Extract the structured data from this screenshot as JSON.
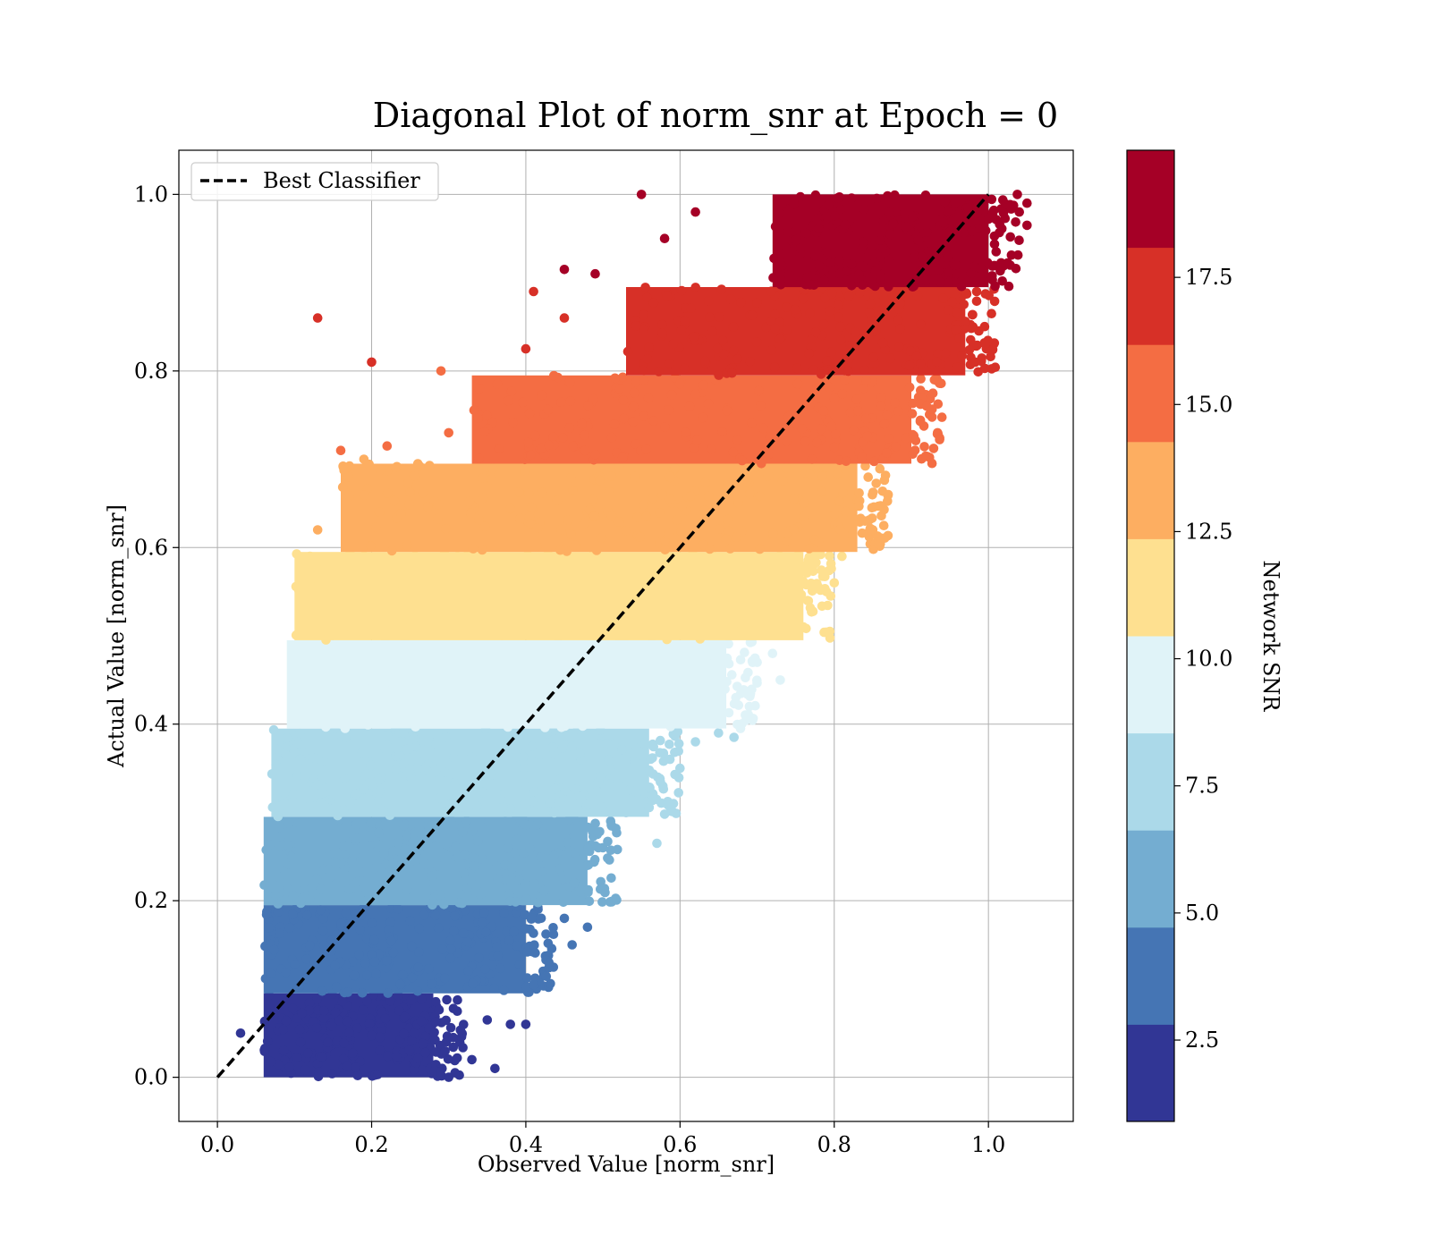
{
  "chart_data": {
    "type": "scatter",
    "title": "Diagonal Plot of norm_snr at Epoch = 0",
    "xlabel": "Observed Value [norm_snr]",
    "ylabel": "Actual Value [norm_snr]",
    "xlim": [
      -0.05,
      1.11
    ],
    "ylim": [
      -0.05,
      1.05
    ],
    "xticks": [
      "0.0",
      "0.2",
      "0.4",
      "0.6",
      "0.8",
      "1.0"
    ],
    "yticks": [
      "0.0",
      "0.2",
      "0.4",
      "0.6",
      "0.8",
      "1.0"
    ],
    "grid": true,
    "legend": {
      "placement": "upper-left",
      "entries": [
        {
          "label": "Best Classifier",
          "style": "dashed",
          "color": "#000000"
        }
      ]
    },
    "reference_line": {
      "name": "Best Classifier",
      "points": [
        [
          0,
          0
        ],
        [
          1,
          1
        ]
      ],
      "style": "dashed"
    },
    "colorbar": {
      "label": "Network SNR",
      "range": [
        0.9,
        20.0
      ],
      "ticks": [
        "2.5",
        "5.0",
        "7.5",
        "10.0",
        "12.5",
        "15.0",
        "17.5"
      ],
      "colors": [
        "#313695",
        "#4575b4",
        "#74add1",
        "#abd9e9",
        "#e0f3f8",
        "#fee090",
        "#fdae61",
        "#f46d43",
        "#d73027",
        "#a50026"
      ]
    },
    "bands": [
      {
        "y_range": [
          0.0,
          0.095
        ],
        "color": "#313695",
        "core_x": [
          0.06,
          0.28
        ],
        "outliers": [
          [
            0.03,
            0.05
          ],
          [
            0.3,
            0.0
          ],
          [
            0.33,
            0.02
          ],
          [
            0.36,
            0.01
          ],
          [
            0.38,
            0.06
          ],
          [
            0.4,
            0.06
          ],
          [
            0.35,
            0.065
          ]
        ]
      },
      {
        "y_range": [
          0.095,
          0.195
        ],
        "color": "#4575b4",
        "core_x": [
          0.06,
          0.4
        ],
        "outliers": [
          [
            0.41,
            0.105
          ],
          [
            0.46,
            0.15
          ],
          [
            0.48,
            0.17
          ],
          [
            0.43,
            0.13
          ],
          [
            0.45,
            0.18
          ]
        ]
      },
      {
        "y_range": [
          0.195,
          0.295
        ],
        "color": "#74add1",
        "core_x": [
          0.06,
          0.48
        ],
        "outliers": [
          [
            0.48,
            0.24
          ],
          [
            0.5,
            0.26
          ],
          [
            0.47,
            0.21
          ],
          [
            0.51,
            0.29
          ],
          [
            0.53,
            0.3
          ]
        ]
      },
      {
        "y_range": [
          0.295,
          0.395
        ],
        "color": "#abd9e9",
        "core_x": [
          0.07,
          0.56
        ],
        "outliers": [
          [
            0.57,
            0.265
          ],
          [
            0.6,
            0.35
          ],
          [
            0.65,
            0.39
          ],
          [
            0.67,
            0.385
          ],
          [
            0.62,
            0.38
          ]
        ]
      },
      {
        "y_range": [
          0.395,
          0.495
        ],
        "color": "#e0f3f8",
        "core_x": [
          0.09,
          0.66
        ],
        "outliers": [
          [
            0.69,
            0.42
          ],
          [
            0.7,
            0.47
          ],
          [
            0.72,
            0.48
          ],
          [
            0.73,
            0.45
          ]
        ]
      },
      {
        "y_range": [
          0.495,
          0.595
        ],
        "color": "#fee090",
        "core_x": [
          0.1,
          0.76
        ],
        "outliers": [
          [
            0.12,
            0.59
          ],
          [
            0.76,
            0.51
          ],
          [
            0.79,
            0.55
          ],
          [
            0.8,
            0.56
          ],
          [
            0.81,
            0.59
          ]
        ]
      },
      {
        "y_range": [
          0.595,
          0.695
        ],
        "color": "#fdae61",
        "core_x": [
          0.16,
          0.83
        ],
        "outliers": [
          [
            0.13,
            0.62
          ],
          [
            0.17,
            0.68
          ],
          [
            0.19,
            0.7
          ],
          [
            0.21,
            0.64
          ],
          [
            0.85,
            0.62
          ],
          [
            0.87,
            0.66
          ],
          [
            0.84,
            0.63
          ]
        ]
      },
      {
        "y_range": [
          0.695,
          0.795
        ],
        "color": "#f46d43",
        "core_x": [
          0.33,
          0.9
        ],
        "outliers": [
          [
            0.16,
            0.71
          ],
          [
            0.22,
            0.715
          ],
          [
            0.3,
            0.73
          ],
          [
            0.34,
            0.78
          ],
          [
            0.29,
            0.8
          ],
          [
            0.92,
            0.76
          ],
          [
            0.93,
            0.79
          ]
        ]
      },
      {
        "y_range": [
          0.795,
          0.895
        ],
        "color": "#d73027",
        "core_x": [
          0.53,
          0.97
        ],
        "outliers": [
          [
            0.13,
            0.86
          ],
          [
            0.2,
            0.81
          ],
          [
            0.41,
            0.89
          ],
          [
            0.4,
            0.825
          ],
          [
            0.45,
            0.86
          ],
          [
            0.98,
            0.85
          ]
        ]
      },
      {
        "y_range": [
          0.895,
          1.0
        ],
        "color": "#a50026",
        "core_x": [
          0.72,
          1.0
        ],
        "outliers": [
          [
            0.45,
            0.915
          ],
          [
            0.49,
            0.91
          ],
          [
            0.55,
            1.0
          ],
          [
            0.58,
            0.95
          ],
          [
            0.62,
            0.98
          ],
          [
            1.01,
            0.935
          ],
          [
            1.04,
            0.98
          ],
          [
            1.05,
            0.99
          ],
          [
            1.05,
            0.965
          ]
        ]
      }
    ]
  }
}
